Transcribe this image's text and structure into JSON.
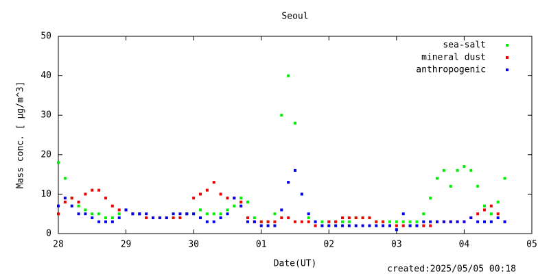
{
  "chart_data": {
    "type": "scatter",
    "title": "Seoul",
    "xlabel": "Date(UT)",
    "ylabel": "Mass conc. [ μg/m^3]",
    "footer": "created:2025/05/05 00:18",
    "xlim": [
      0,
      7
    ],
    "xticks": [
      {
        "value": 0,
        "label": "28"
      },
      {
        "value": 1,
        "label": "29"
      },
      {
        "value": 2,
        "label": "30"
      },
      {
        "value": 3,
        "label": "01"
      },
      {
        "value": 4,
        "label": "02"
      },
      {
        "value": 5,
        "label": "03"
      },
      {
        "value": 6,
        "label": "04"
      },
      {
        "value": 7,
        "label": "05"
      }
    ],
    "ylim": [
      0,
      50
    ],
    "yticks": [
      0,
      10,
      20,
      30,
      40,
      50
    ],
    "grid": false,
    "legend": "top-right",
    "x": [
      0,
      0.1,
      0.2,
      0.3,
      0.4,
      0.5,
      0.6,
      0.7,
      0.8,
      0.9,
      1,
      1.1,
      1.2,
      1.3,
      1.4,
      1.5,
      1.6,
      1.7,
      1.8,
      1.9,
      2,
      2.1,
      2.2,
      2.3,
      2.4,
      2.5,
      2.6,
      2.7,
      2.8,
      2.9,
      3,
      3.1,
      3.2,
      3.3,
      3.4,
      3.5,
      3.6,
      3.7,
      3.8,
      3.9,
      4,
      4.1,
      4.2,
      4.3,
      4.4,
      4.5,
      4.6,
      4.7,
      4.8,
      4.9,
      5,
      5.1,
      5.2,
      5.3,
      5.4,
      5.5,
      5.6,
      5.7,
      5.8,
      5.9,
      6,
      6.1,
      6.2,
      6.3,
      6.4,
      6.5,
      6.6
    ],
    "series": [
      {
        "name": "sea-salt",
        "color": "#00ee00",
        "values": [
          18,
          14,
          9,
          7,
          6,
          5,
          5,
          4,
          4,
          5,
          6,
          5,
          5,
          4,
          4,
          4,
          4,
          4,
          4,
          5,
          5,
          6,
          5,
          5,
          5,
          6,
          7,
          9,
          8,
          4,
          3,
          3,
          5,
          30,
          40,
          28,
          10,
          4,
          3,
          3,
          3,
          3,
          3,
          3,
          4,
          4,
          4,
          3,
          3,
          3,
          3,
          3,
          3,
          3,
          5,
          9,
          14,
          16,
          12,
          16,
          17,
          16,
          12,
          7,
          5,
          8,
          14
        ]
      },
      {
        "name": "mineral dust",
        "color": "#ee0000",
        "values": [
          5,
          8,
          9,
          8,
          10,
          11,
          11,
          9,
          7,
          6,
          6,
          5,
          5,
          4,
          4,
          4,
          4,
          4,
          4,
          5,
          9,
          10,
          11,
          13,
          10,
          9,
          9,
          8,
          4,
          3,
          3,
          3,
          3,
          4,
          4,
          3,
          3,
          3,
          2,
          2,
          3,
          3,
          4,
          4,
          4,
          4,
          4,
          3,
          3,
          2,
          2,
          2,
          2,
          2,
          2,
          2,
          3,
          3,
          3,
          3,
          3,
          4,
          5,
          6,
          7,
          5,
          3
        ]
      },
      {
        "name": "anthropogenic",
        "color": "#0000ee",
        "values": [
          7,
          9,
          7,
          5,
          5,
          4,
          3,
          3,
          3,
          4,
          6,
          5,
          5,
          5,
          4,
          4,
          4,
          5,
          5,
          5,
          5,
          4,
          3,
          3,
          4,
          5,
          9,
          7,
          3,
          3,
          2,
          2,
          2,
          6,
          13,
          16,
          10,
          5,
          3,
          2,
          2,
          2,
          2,
          2,
          2,
          2,
          2,
          2,
          2,
          2,
          1,
          5,
          2,
          2,
          3,
          3,
          3,
          3,
          3,
          3,
          3,
          4,
          3,
          3,
          3,
          4,
          3
        ]
      }
    ]
  }
}
